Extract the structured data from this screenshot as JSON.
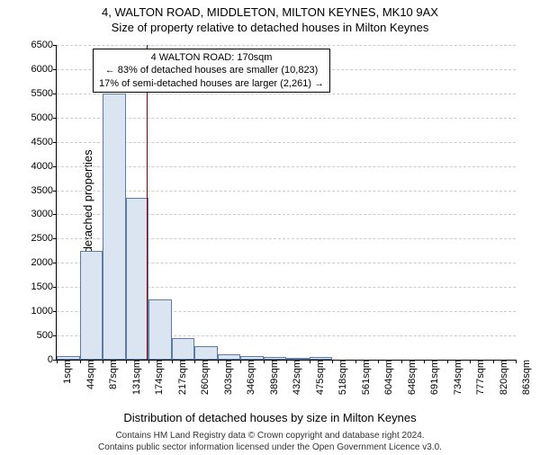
{
  "title": "4, WALTON ROAD, MIDDLETON, MILTON KEYNES, MK10 9AX",
  "subtitle": "Size of property relative to detached houses in Milton Keynes",
  "chart": {
    "type": "histogram",
    "ylabel": "Number of detached properties",
    "xlabel": "Distribution of detached houses by size in Milton Keynes",
    "ylim": [
      0,
      6500
    ],
    "ytick_step": 500,
    "yticks": [
      0,
      500,
      1000,
      1500,
      2000,
      2500,
      3000,
      3500,
      4000,
      4500,
      5000,
      5500,
      6000,
      6500
    ],
    "xticks": [
      "1sqm",
      "44sqm",
      "87sqm",
      "131sqm",
      "174sqm",
      "217sqm",
      "260sqm",
      "303sqm",
      "346sqm",
      "389sqm",
      "432sqm",
      "475sqm",
      "518sqm",
      "561sqm",
      "604sqm",
      "648sqm",
      "691sqm",
      "734sqm",
      "777sqm",
      "820sqm",
      "863sqm"
    ],
    "bar_fill": "#dbe5f1",
    "bar_stroke": "#5b7ca8",
    "grid_color": "#cccccc",
    "background_color": "#ffffff",
    "values": [
      80,
      2250,
      5500,
      3350,
      1250,
      450,
      280,
      120,
      80,
      60,
      40,
      60,
      0,
      0,
      0,
      0,
      0,
      0,
      0,
      0
    ],
    "marker_value": 170,
    "marker_color": "#8b0000",
    "annotation": {
      "line1": "4 WALTON ROAD: 170sqm",
      "line2": "← 83% of detached houses are smaller (10,823)",
      "line3": "17% of semi-detached houses are larger (2,261) →"
    }
  },
  "footer": {
    "line1": "Contains HM Land Registry data © Crown copyright and database right 2024.",
    "line2": "Contains public sector information licensed under the Open Government Licence v3.0."
  }
}
